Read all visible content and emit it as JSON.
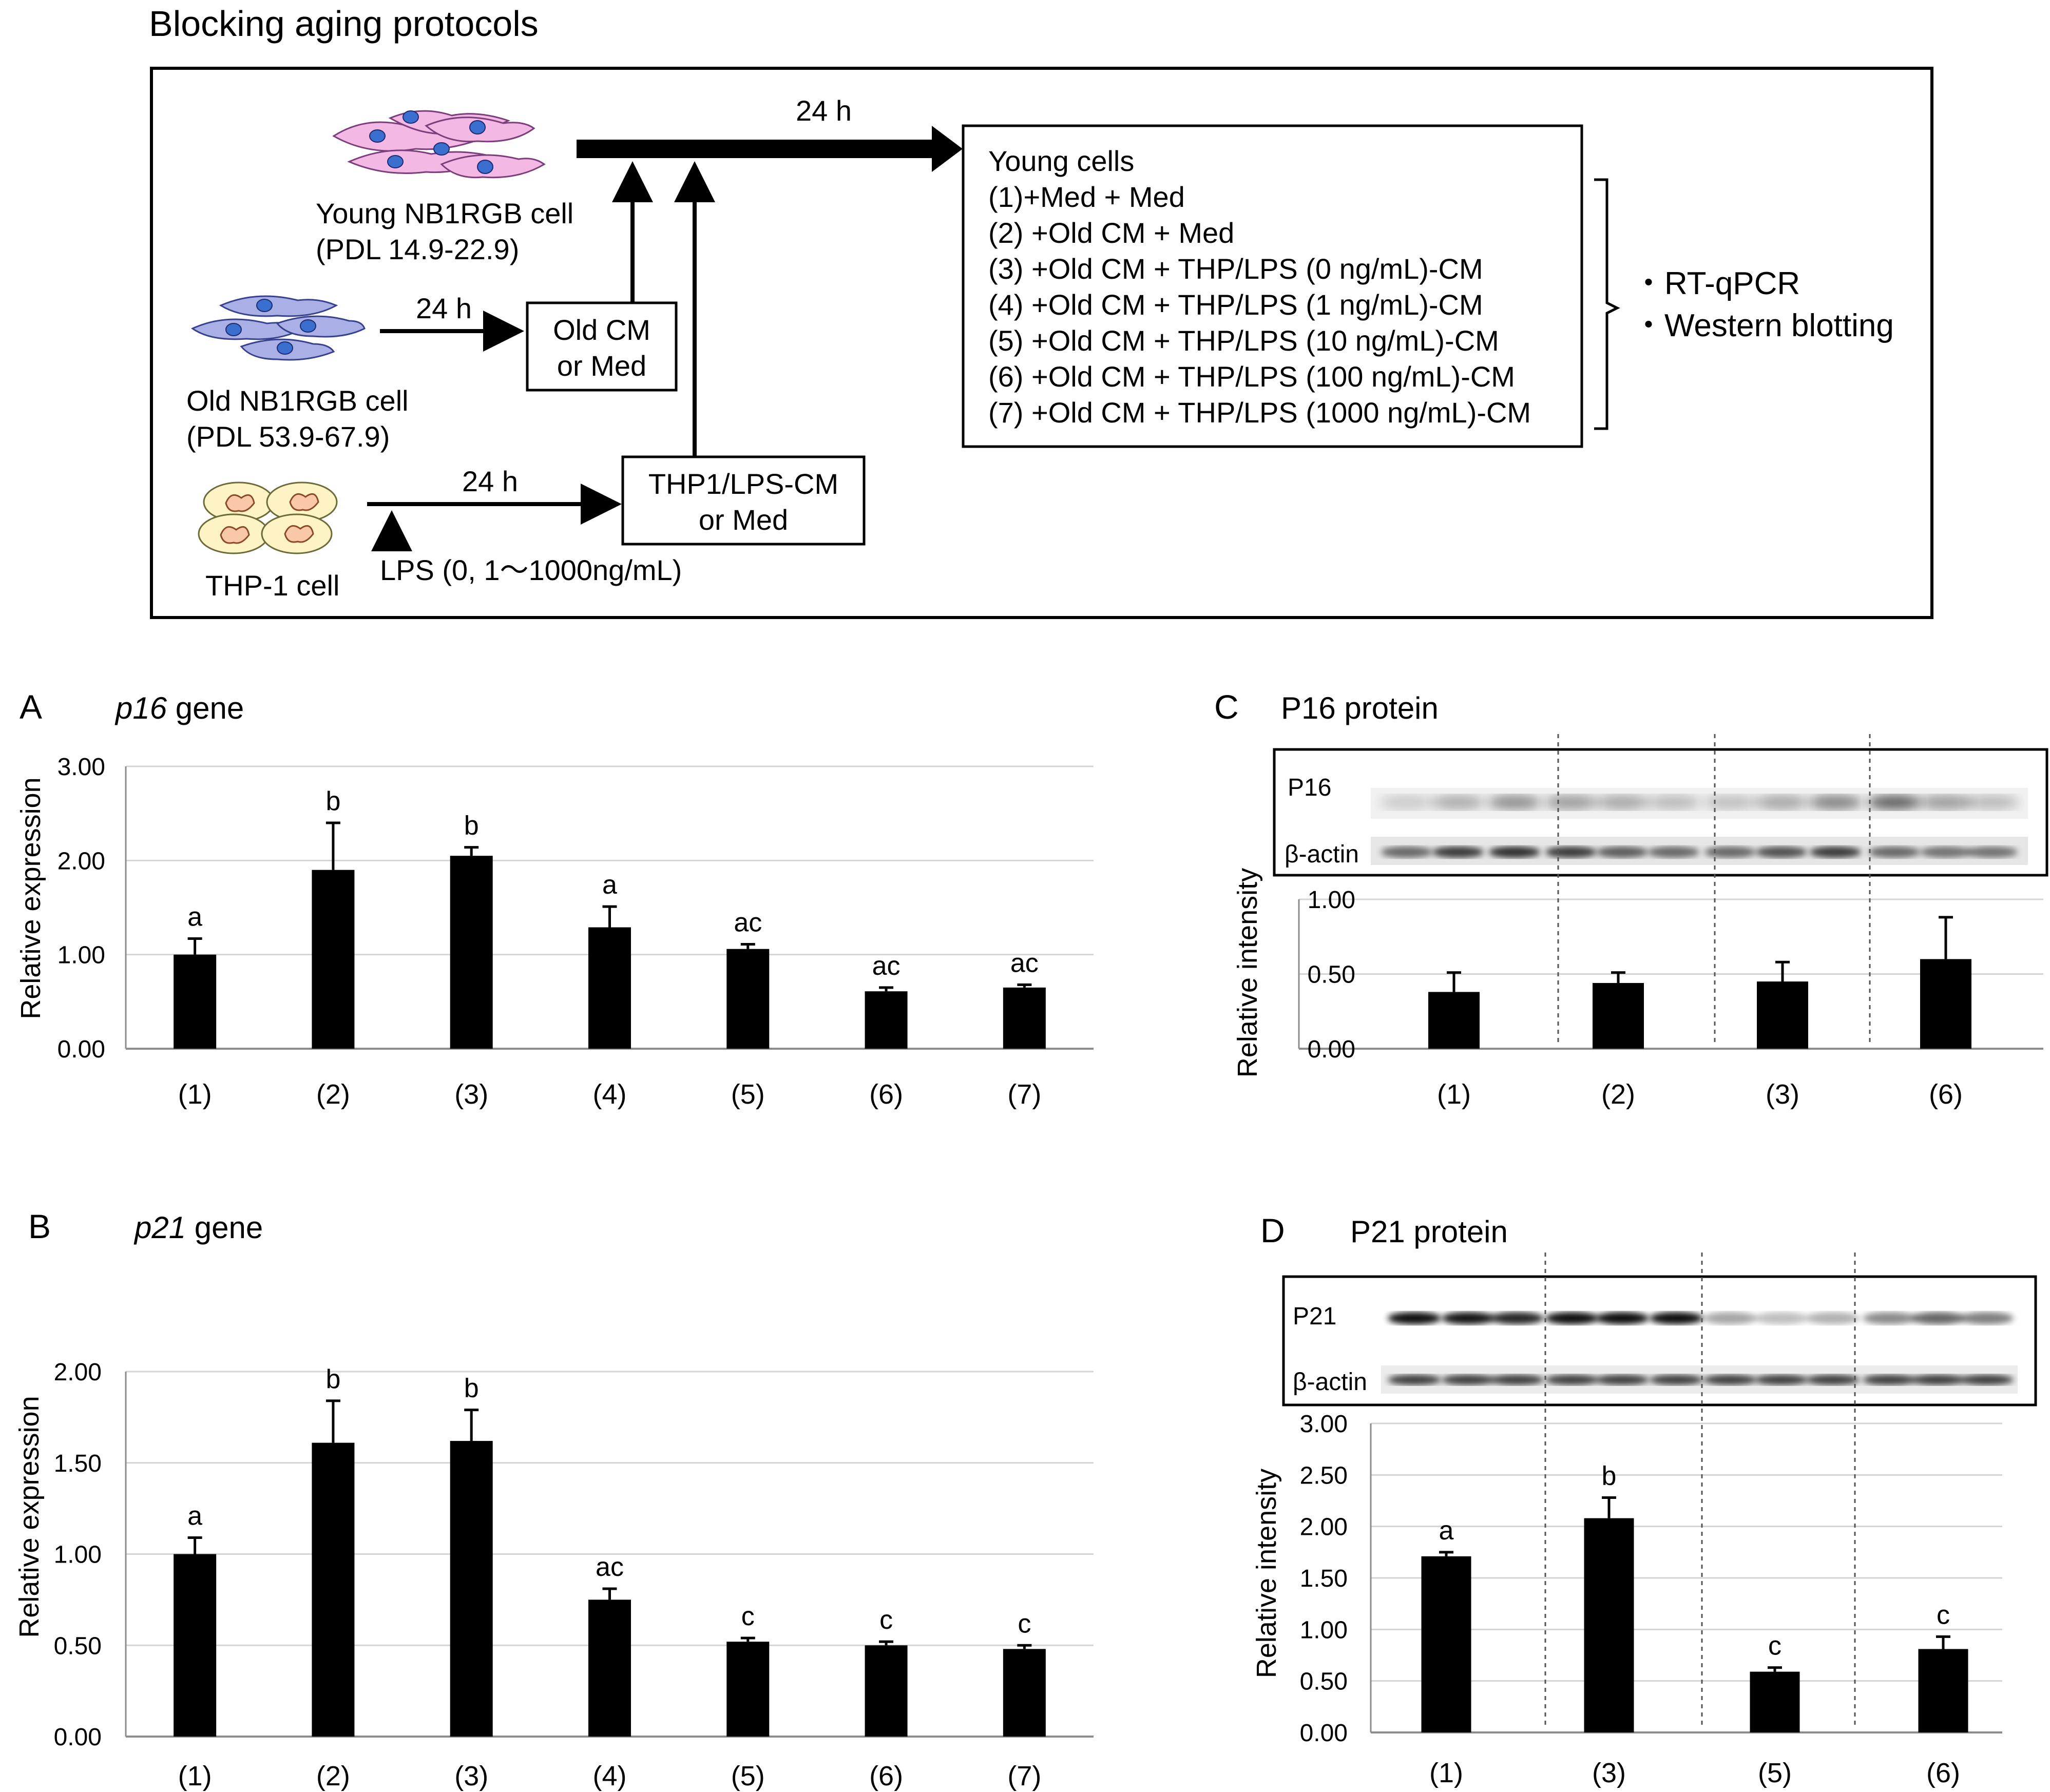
{
  "protocol": {
    "title": "Blocking aging protocols",
    "young_cell": {
      "name": "Young NB1RGB cell",
      "pdl": "(PDL 14.9-22.9)"
    },
    "old_cell": {
      "name": "Old NB1RGB cell",
      "pdl": "(PDL 53.9-67.9)"
    },
    "thp_cell": {
      "name": "THP-1 cell"
    },
    "lps_label": "LPS (0, 1～1000ng/mL)",
    "arrow_24h": "24 h",
    "old_cm_box": [
      "Old CM",
      "or Med"
    ],
    "thp_cm_box": [
      "THP1/LPS-CM",
      "or Med"
    ],
    "young_cells_box": {
      "title": "Young cells",
      "lines": [
        "(1)+Med + Med",
        "(2) +Old CM + Med",
        "(3) +Old CM + THP/LPS (0 ng/mL)-CM",
        "(4) +Old CM + THP/LPS (1 ng/mL)-CM",
        "(5) +Old CM + THP/LPS (10 ng/mL)-CM",
        "(6) +Old CM + THP/LPS (100 ng/mL)-CM",
        "(7) +Old CM + THP/LPS (1000 ng/mL)-CM"
      ]
    },
    "assays": [
      "・RT-qPCR",
      "・Western blotting"
    ],
    "colors": {
      "young_cell": "#f4b8e4",
      "old_cell": "#aab0e6",
      "nucleus": "#3a6fd0",
      "thp_cell": "#fdf3c4",
      "thp_nucleus": "#f8c8a8"
    }
  },
  "chart_data": [
    {
      "panel": "A",
      "type": "bar",
      "title_italic": "p16",
      "title_rest": " gene",
      "ylabel": "Relative expression",
      "ylim": [
        0,
        3
      ],
      "ticks": [
        "0.00",
        "1.00",
        "2.00",
        "3.00"
      ],
      "tick_values": [
        0,
        1,
        2,
        3
      ],
      "categories": [
        "(1)",
        "(2)",
        "(3)",
        "(4)",
        "(5)",
        "(6)",
        "(7)"
      ],
      "values": [
        1.0,
        1.9,
        2.05,
        1.29,
        1.06,
        0.61,
        0.65
      ],
      "errors": [
        0.17,
        0.5,
        0.09,
        0.22,
        0.05,
        0.04,
        0.03
      ],
      "sig": [
        "a",
        "b",
        "b",
        "a",
        "ac",
        "ac",
        "ac"
      ],
      "grid": true,
      "bar_color": "#000000"
    },
    {
      "panel": "B",
      "type": "bar",
      "title_italic": "p21",
      "title_rest": " gene",
      "ylabel": "Relative expression",
      "ylim": [
        0,
        2
      ],
      "ticks": [
        "0.00",
        "0.50",
        "1.00",
        "1.50",
        "2.00"
      ],
      "tick_values": [
        0,
        0.5,
        1,
        1.5,
        2
      ],
      "categories": [
        "(1)",
        "(2)",
        "(3)",
        "(4)",
        "(5)",
        "(6)",
        "(7)"
      ],
      "values": [
        1.0,
        1.61,
        1.62,
        0.75,
        0.52,
        0.5,
        0.48
      ],
      "errors": [
        0.09,
        0.23,
        0.17,
        0.06,
        0.02,
        0.02,
        0.02
      ],
      "sig": [
        "a",
        "b",
        "b",
        "ac",
        "c",
        "c",
        "c"
      ],
      "grid": true,
      "bar_color": "#000000"
    },
    {
      "panel": "C",
      "type": "bar",
      "title": "P16 protein",
      "ylabel": "Relative intensity",
      "ylim": [
        0,
        1
      ],
      "ticks": [
        "0.00",
        "0.50",
        "1.00"
      ],
      "tick_values": [
        0,
        0.5,
        1
      ],
      "categories": [
        "(1)",
        "(2)",
        "(3)",
        "(6)"
      ],
      "values": [
        0.38,
        0.44,
        0.45,
        0.6
      ],
      "errors": [
        0.13,
        0.07,
        0.13,
        0.28
      ],
      "sig": [
        "",
        "",
        "",
        ""
      ],
      "blot_labels": [
        "P16",
        "β-actin"
      ],
      "grid": true,
      "bar_color": "#000000"
    },
    {
      "panel": "D",
      "type": "bar",
      "title": "P21 protein",
      "ylabel": "Relative intensity",
      "ylim": [
        0,
        3
      ],
      "ticks": [
        "0.00",
        "0.50",
        "1.00",
        "1.50",
        "2.00",
        "2.50",
        "3.00"
      ],
      "tick_values": [
        0,
        0.5,
        1,
        1.5,
        2,
        2.5,
        3
      ],
      "categories": [
        "(1)",
        "(3)",
        "(5)",
        "(6)"
      ],
      "values": [
        1.71,
        2.08,
        0.59,
        0.81
      ],
      "errors": [
        0.04,
        0.2,
        0.04,
        0.12
      ],
      "sig": [
        "a",
        "b",
        "c",
        "c"
      ],
      "blot_labels": [
        "P21",
        "β-actin"
      ],
      "grid": true,
      "bar_color": "#000000"
    }
  ]
}
